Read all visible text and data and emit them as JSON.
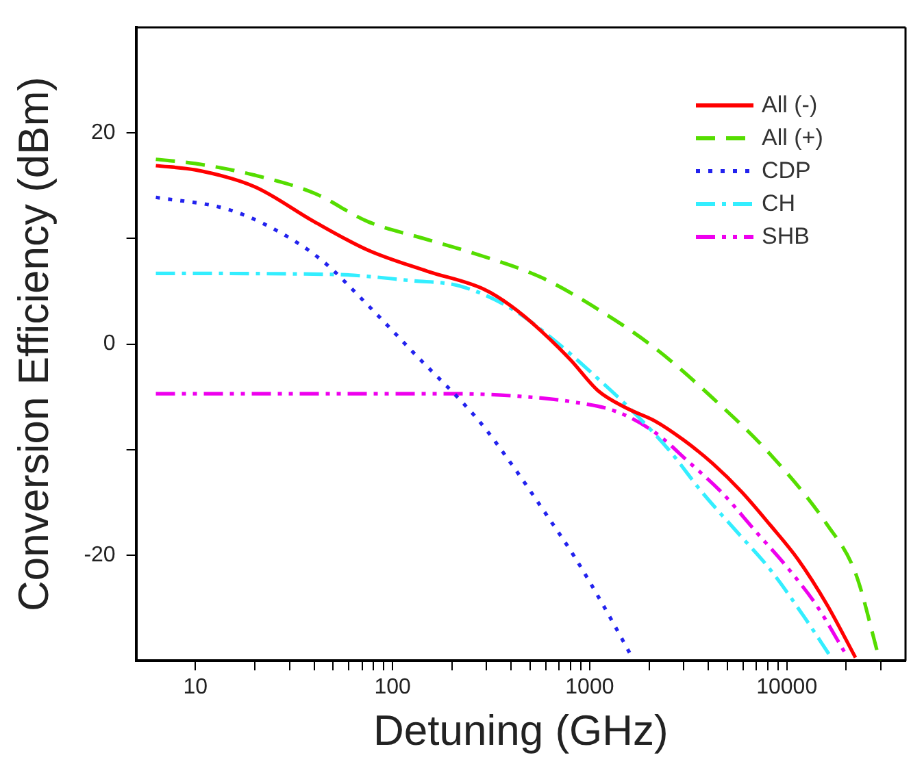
{
  "chart_data": {
    "type": "line",
    "xlabel": "Detuning (GHz)",
    "ylabel": "Conversion Efficiency (dBm)",
    "log": "x",
    "xlim": [
      5,
      40000
    ],
    "ylim": [
      -30,
      30
    ],
    "xticks": [
      10,
      {
        "value": 20,
        "label": null
      },
      {
        "value": 30,
        "label": null
      },
      {
        "value": 40,
        "label": null
      },
      {
        "value": 50,
        "label": null
      },
      {
        "value": 60,
        "label": null
      },
      {
        "value": 70,
        "label": null
      },
      {
        "value": 80,
        "label": null
      },
      {
        "value": 90,
        "label": null
      },
      100,
      {
        "value": 200,
        "label": null
      },
      {
        "value": 300,
        "label": null
      },
      {
        "value": 400,
        "label": null
      },
      {
        "value": 500,
        "label": null
      },
      {
        "value": 600,
        "label": null
      },
      {
        "value": 700,
        "label": null
      },
      {
        "value": 800,
        "label": null
      },
      {
        "value": 900,
        "label": null
      },
      1000,
      {
        "value": 2000,
        "label": null
      },
      {
        "value": 3000,
        "label": null
      },
      {
        "value": 4000,
        "label": null
      },
      {
        "value": 5000,
        "label": null
      },
      {
        "value": 6000,
        "label": null
      },
      {
        "value": 7000,
        "label": null
      },
      {
        "value": 8000,
        "label": null
      },
      {
        "value": 9000,
        "label": null
      },
      10000,
      {
        "value": 20000,
        "label": null
      },
      {
        "value": 30000,
        "label": null
      }
    ],
    "yticks": [
      -20,
      {
        "value": -10,
        "label": null
      },
      0,
      {
        "value": 10,
        "label": null
      },
      20
    ],
    "legend": "top right",
    "grid": false,
    "series": [
      {
        "name": "All (-)",
        "color": "#ff0000",
        "line_style": "solid",
        "x": [
          6.3,
          10,
          20,
          40,
          75,
          150,
          290,
          400,
          570,
          800,
          1100,
          1550,
          2150,
          3000,
          4200,
          5900,
          8200,
          11400,
          16000,
          22300
        ],
        "values": [
          16.9,
          16.5,
          14.9,
          11.6,
          8.9,
          6.9,
          5.2,
          3.6,
          1.2,
          -1.5,
          -4.4,
          -6.1,
          -7.3,
          -9.1,
          -11.3,
          -14,
          -17.1,
          -20.4,
          -24.7,
          -29.7
        ]
      },
      {
        "name": "All (+)",
        "color": "#55dd00",
        "line_style": "dashed",
        "x": [
          6.3,
          10,
          20,
          40,
          75,
          150,
          290,
          570,
          1100,
          2150,
          4200,
          8200,
          16000,
          22300,
          29600
        ],
        "values": [
          17.5,
          17.1,
          16,
          14.3,
          11.6,
          9.9,
          8.3,
          6.3,
          3.3,
          -0.4,
          -5.1,
          -10.4,
          -17.1,
          -21.7,
          -30
        ]
      },
      {
        "name": "CDP",
        "color": "#2222ee",
        "line_style": "dotted",
        "x": [
          6.3,
          14.4,
          25,
          44,
          73,
          126,
          275,
          406,
          595,
          834,
          1168,
          1600
        ],
        "values": [
          13.9,
          12.8,
          10.9,
          7.9,
          3.9,
          -0.7,
          -7.3,
          -11.5,
          -16,
          -20.1,
          -24.7,
          -29.3
        ]
      },
      {
        "name": "CH",
        "color": "#33eeff",
        "line_style": "dashdot",
        "x": [
          6.3,
          50,
          126,
          219,
          406,
          667,
          1105,
          1722,
          2542,
          3740,
          5530,
          8190,
          12100,
          16800
        ],
        "values": [
          6.7,
          6.6,
          6,
          5.5,
          3.3,
          0.3,
          -3.3,
          -6.7,
          -10.1,
          -14.1,
          -17.7,
          -21.3,
          -25.7,
          -29.7
        ]
      },
      {
        "name": "SHB",
        "color": "#ee00ee",
        "line_style": "dashdotdot",
        "x": [
          6.3,
          100,
          200,
          406,
          834,
          1370,
          2155,
          3150,
          4700,
          6920,
          10200,
          14200,
          19800
        ],
        "values": [
          -4.7,
          -4.7,
          -4.7,
          -4.9,
          -5.5,
          -6.4,
          -8.4,
          -11.1,
          -14.1,
          -17.7,
          -21.3,
          -24.8,
          -29.3
        ]
      }
    ]
  }
}
